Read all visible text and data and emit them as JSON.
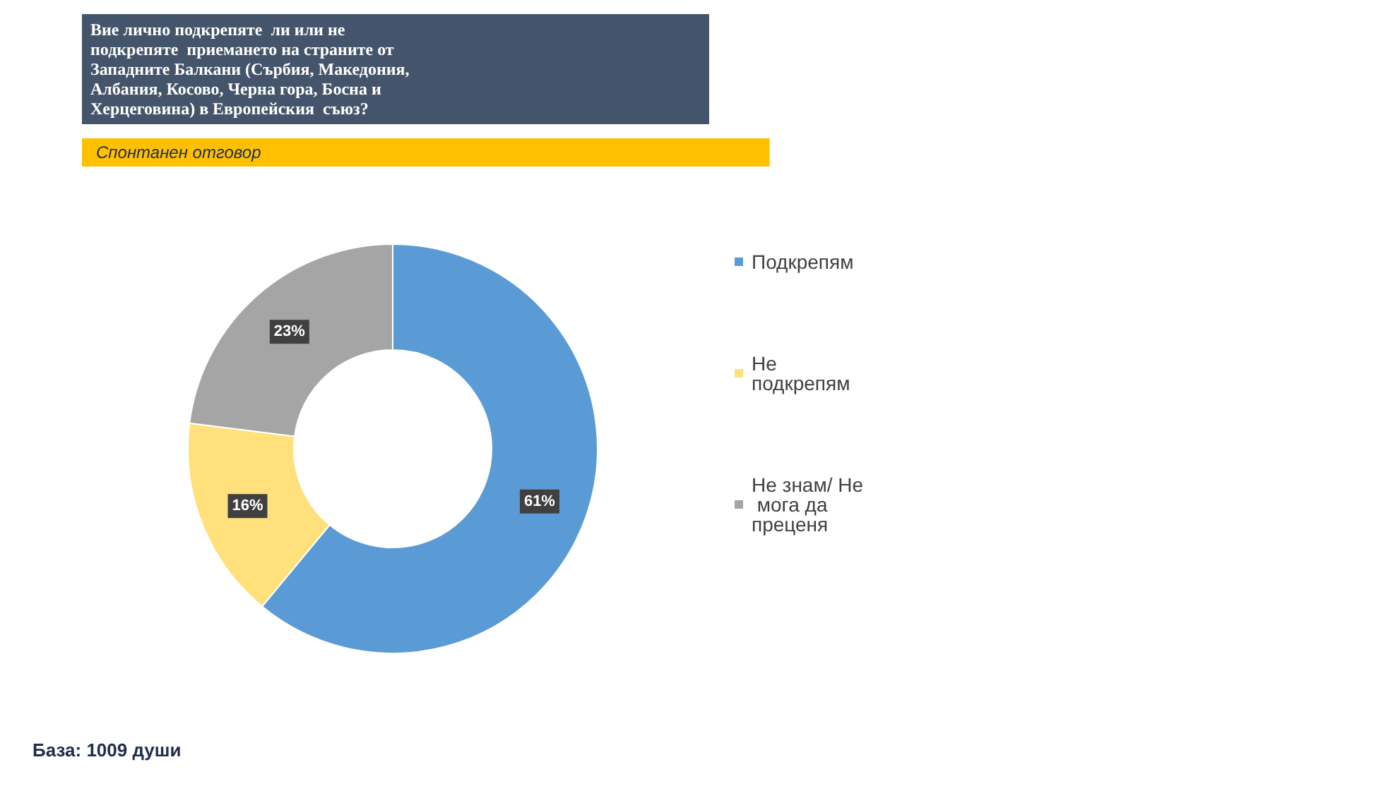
{
  "chart_data": {
    "type": "donut",
    "title": "Вие лично подкрепяте  ли или не подкрепяте  приемането на страните от Западните Балкани (Сърбия, Македония, Албания, Косово, Черна гора, Босна и Херцеговина) в Европейския  съюз?",
    "subtitle": "Спонтанен отговор",
    "categories": [
      "Подкрепям",
      "Не подкрепям",
      "Не знам/ Не мога да преценя"
    ],
    "values": [
      61,
      16,
      23
    ],
    "colors": [
      "#5b9bd5",
      "#ffe07a",
      "#a5a5a5"
    ],
    "value_labels": [
      "61%",
      "16%",
      "23%"
    ],
    "legend": "right",
    "annotations": [
      "База: 1009 души"
    ]
  }
}
